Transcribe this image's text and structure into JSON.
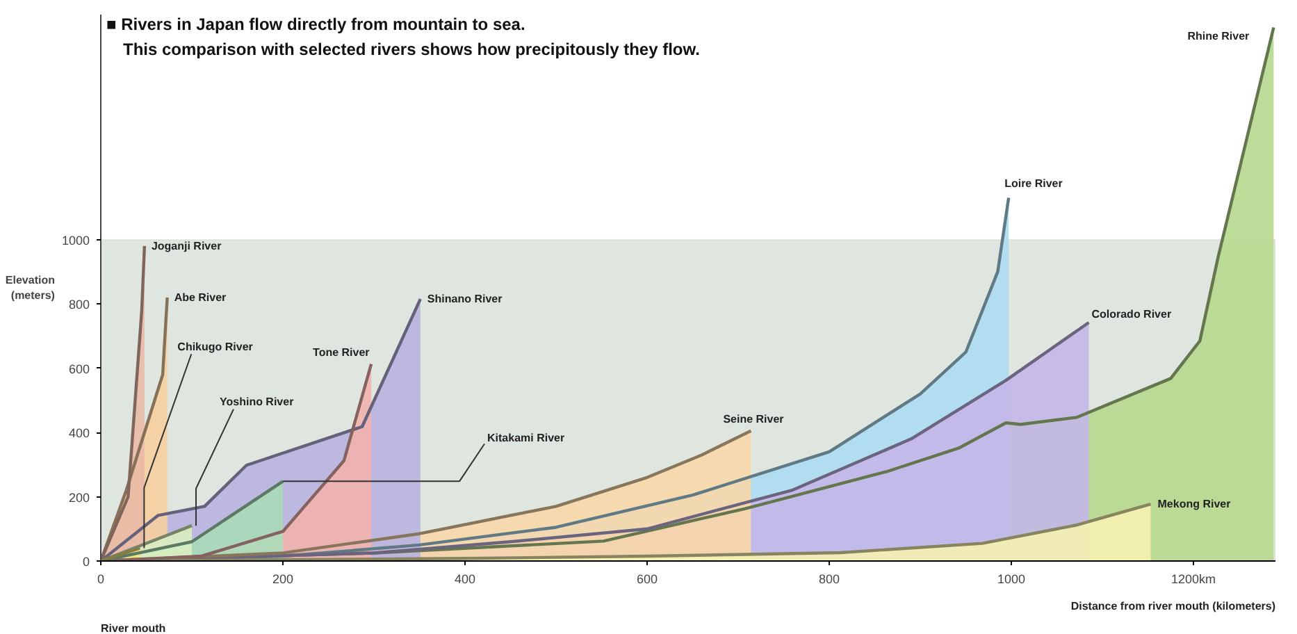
{
  "chart_data": {
    "type": "area",
    "title": "■ Rivers in Japan flow directly from mountain to sea.",
    "subtitle": "This comparison with selected rivers shows how precipitously they flow.",
    "xlabel": "Distance from river mouth (kilometers)",
    "ylabel": "Elevation (meters)",
    "annotations": [
      "River mouth"
    ],
    "xlim": [
      0,
      1290
    ],
    "ylim": [
      0,
      1700
    ],
    "xticks": [
      0,
      200,
      400,
      600,
      800,
      1000,
      {
        "value": 1200,
        "label": "1200km"
      }
    ],
    "yticks": [
      0,
      200,
      400,
      600,
      800,
      1000
    ],
    "bands": [
      {
        "axis": "y",
        "from": 0,
        "to": 1000,
        "color": "#dfe5df"
      }
    ],
    "grid": false,
    "series": [
      {
        "name": "Joganji River",
        "color": "#e9b9a6",
        "x": [
          0,
          30,
          45,
          48
        ],
        "values": [
          0,
          200,
          780,
          980
        ]
      },
      {
        "name": "Abe River",
        "color": "#f6cf9e",
        "x": [
          0,
          28,
          68,
          73
        ],
        "values": [
          0,
          220,
          580,
          820
        ]
      },
      {
        "name": "Chikugo River",
        "color": "#f0e47a",
        "x": [
          0,
          43
        ],
        "values": [
          0,
          40
        ]
      },
      {
        "name": "Yoshino River",
        "color": "#d9eec0",
        "x": [
          0,
          100
        ],
        "values": [
          0,
          110
        ]
      },
      {
        "name": "Kitakami River",
        "color": "#a9dcb9",
        "x": [
          0,
          100,
          200
        ],
        "values": [
          0,
          60,
          248
        ]
      },
      {
        "name": "Tone River",
        "color": "#f2b3ad",
        "x": [
          0,
          110,
          200,
          267,
          297
        ],
        "values": [
          0,
          15,
          92,
          312,
          613
        ]
      },
      {
        "name": "Shinano River",
        "color": "#b9b2e0",
        "x": [
          0,
          63,
          114,
          160,
          287,
          351
        ],
        "values": [
          0,
          142,
          170,
          298,
          418,
          815
        ]
      },
      {
        "name": "Seine River",
        "color": "#f8d7a8",
        "x": [
          0,
          200,
          350,
          500,
          600,
          660,
          714
        ],
        "values": [
          0,
          25,
          85,
          170,
          260,
          330,
          405
        ]
      },
      {
        "name": "Loire River",
        "color": "#addcf2",
        "x": [
          0,
          200,
          350,
          500,
          650,
          800,
          900,
          950,
          985,
          997
        ],
        "values": [
          0,
          15,
          50,
          105,
          205,
          340,
          520,
          650,
          900,
          1130
        ]
      },
      {
        "name": "Colorado River",
        "color": "#c4b6e8",
        "x": [
          0,
          300,
          450,
          600,
          760,
          890,
          994,
          1085
        ],
        "values": [
          0,
          25,
          60,
          100,
          221,
          380,
          562,
          742
        ]
      },
      {
        "name": "Rhine River",
        "color": "#b6d88e",
        "x": [
          0,
          300,
          552,
          708,
          864,
          942,
          994,
          1010,
          1072,
          1175,
          1207,
          1227,
          1288
        ],
        "values": [
          0,
          25,
          62,
          163,
          279,
          351,
          430,
          425,
          447,
          568,
          685,
          945,
          1660
        ]
      },
      {
        "name": "Mekong River",
        "color": "#f6f1b0",
        "x": [
          0,
          400,
          600,
          812,
          968,
          1072,
          1153
        ],
        "values": [
          0,
          8,
          15,
          26,
          55,
          112,
          177
        ]
      }
    ]
  }
}
